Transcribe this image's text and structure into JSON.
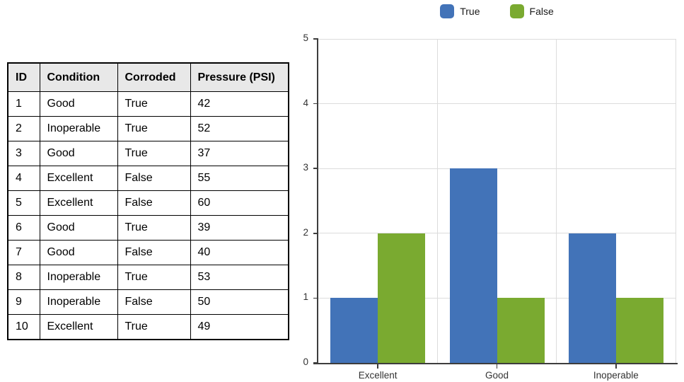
{
  "table": {
    "columns": [
      "ID",
      "Condition",
      "Corroded",
      "Pressure (PSI)"
    ],
    "rows": [
      [
        1,
        "Good",
        "True",
        42
      ],
      [
        2,
        "Inoperable",
        "True",
        52
      ],
      [
        3,
        "Good",
        "True",
        37
      ],
      [
        4,
        "Excellent",
        "False",
        55
      ],
      [
        5,
        "Excellent",
        "False",
        60
      ],
      [
        6,
        "Good",
        "True",
        39
      ],
      [
        7,
        "Good",
        "False",
        40
      ],
      [
        8,
        "Inoperable",
        "True",
        53
      ],
      [
        9,
        "Inoperable",
        "False",
        50
      ],
      [
        10,
        "Excellent",
        "True",
        49
      ]
    ]
  },
  "chart_data": {
    "type": "bar",
    "title": "",
    "categories": [
      "Excellent",
      "Good",
      "Inoperable"
    ],
    "series": [
      {
        "name": "True",
        "color": "#4273b8",
        "values": [
          1,
          3,
          2
        ]
      },
      {
        "name": "False",
        "color": "#7aaa30",
        "values": [
          2,
          1,
          1
        ]
      }
    ],
    "xlabel": "",
    "ylabel": "",
    "ylim": [
      0,
      5
    ],
    "y_ticks": [
      0,
      1,
      2,
      3,
      4,
      5
    ],
    "grid": true,
    "legend_position": "top",
    "colors": {
      "grid": "#dcdcdc",
      "axis": "#3d3d3d",
      "tick_text": "#333333"
    }
  }
}
